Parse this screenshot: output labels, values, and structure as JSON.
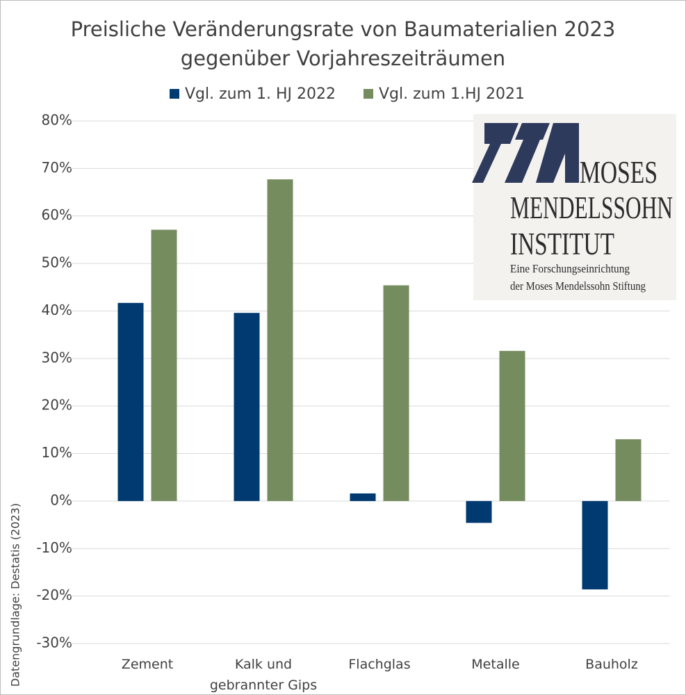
{
  "chart_data": {
    "type": "bar",
    "title": "Preisliche Veränderungsrate von Baumaterialien 2023\ngegenüber Vorjahreszeiträumen",
    "categories": [
      "Zement",
      "Kalk und\ngebrannter Gips",
      "Flachglas",
      "Metalle",
      "Bauholz"
    ],
    "series": [
      {
        "name": "Vgl. zum 1. HJ 2022",
        "color": "#003a70",
        "values": [
          41.7,
          39.6,
          1.6,
          -4.6,
          -18.6
        ]
      },
      {
        "name": "Vgl. zum 1.HJ 2021",
        "color": "#758c5e",
        "values": [
          57.1,
          67.7,
          45.4,
          31.6,
          13.0
        ]
      }
    ],
    "ylim": [
      -30,
      80
    ],
    "yticks": [
      {
        "value": -30,
        "label": "-30%"
      },
      {
        "value": -20,
        "label": "-20%"
      },
      {
        "value": -10,
        "label": "-10%"
      },
      {
        "value": 0,
        "label": "0%"
      },
      {
        "value": 10,
        "label": "10%"
      },
      {
        "value": 20,
        "label": "20%"
      },
      {
        "value": 30,
        "label": "30%"
      },
      {
        "value": 40,
        "label": "40%"
      },
      {
        "value": 50,
        "label": "50%"
      },
      {
        "value": 60,
        "label": "60%"
      },
      {
        "value": 70,
        "label": "70%"
      },
      {
        "value": 80,
        "label": "80%"
      }
    ],
    "grid": true,
    "source": "Datengrundlage: Destatis (2023)"
  },
  "logo": {
    "line1": "MOSES",
    "line2": "MENDELSSOHN",
    "line3": "INSTITUT",
    "tagline1": "Eine Forschungseinrichtung",
    "tagline2": "der Moses Mendelssohn Stiftung"
  }
}
